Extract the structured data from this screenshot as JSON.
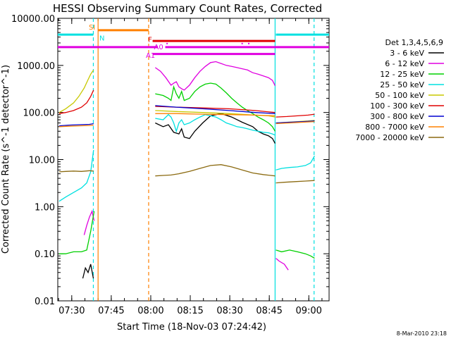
{
  "chart_data": {
    "type": "line",
    "title": "HESSI Observing Summary Count Rates, Corrected",
    "xlabel": "Start Time (18-Nov-03 07:24:42)",
    "ylabel": "Corrected Count Rate (s^-1 detector^-1)",
    "x_unit": "minutes since 07:24:42",
    "xlim": [
      0,
      103
    ],
    "ylim": [
      0.01,
      10000
    ],
    "y_scale": "log",
    "x_ticks": [
      {
        "label": "07:30",
        "x": 5.3
      },
      {
        "label": "07:45",
        "x": 20.3
      },
      {
        "label": "08:00",
        "x": 35.3
      },
      {
        "label": "08:15",
        "x": 50.3
      },
      {
        "label": "08:30",
        "x": 65.3
      },
      {
        "label": "08:45",
        "x": 80.3
      },
      {
        "label": "09:00",
        "x": 95.3
      }
    ],
    "y_ticks": [
      {
        "label": "10000.00",
        "v": 10000
      },
      {
        "label": "1000.00",
        "v": 1000
      },
      {
        "label": "100.00",
        "v": 100
      },
      {
        "label": "10.00",
        "v": 10
      },
      {
        "label": "1.00",
        "v": 1
      },
      {
        "label": "0.10",
        "v": 0.1
      },
      {
        "label": "0.01",
        "v": 0.01
      }
    ],
    "legend_title": "Det 1,3,4,5,6,9",
    "legend_position": "right",
    "date_stamp": "8-Mar-2010 23:18",
    "series": [
      {
        "name": "3 - 6 keV",
        "color": "#000000",
        "segments": [
          {
            "x": [
              9.5,
              10.5,
              11.5,
              12.5,
              13.5
            ],
            "y": [
              0.03,
              0.05,
              0.04,
              0.06,
              0.03
            ]
          },
          {
            "x": [
              37,
              40,
              42,
              44,
              46,
              47,
              48,
              50,
              52,
              55,
              58,
              62,
              66,
              70,
              74,
              76,
              78,
              80,
              81.5,
              82.5
            ],
            "y": [
              60,
              50,
              55,
              38,
              35,
              45,
              30,
              28,
              40,
              60,
              85,
              95,
              80,
              62,
              50,
              40,
              35,
              32,
              28,
              22
            ]
          }
        ]
      },
      {
        "name": "6 - 12 keV",
        "color": "#e000e0",
        "segments": [
          {
            "x": [
              10,
              11,
              12,
              13,
              13.8
            ],
            "y": [
              0.25,
              0.4,
              0.6,
              0.8,
              0.5
            ]
          },
          {
            "x": [
              37,
              39,
              41,
              43,
              44,
              45,
              46,
              47,
              48,
              50,
              52,
              54,
              56,
              58,
              60,
              62,
              64,
              66,
              68,
              70,
              72,
              74,
              76,
              78,
              80,
              81.5,
              82.5
            ],
            "y": [
              900,
              750,
              550,
              380,
              420,
              450,
              350,
              320,
              300,
              380,
              550,
              750,
              950,
              1150,
              1200,
              1100,
              1000,
              950,
              900,
              850,
              800,
              700,
              650,
              600,
              550,
              480,
              370
            ]
          },
          {
            "x": [
              82.8,
              84,
              86,
              87.5
            ],
            "y": [
              0.08,
              0.07,
              0.06,
              0.045
            ]
          }
        ]
      },
      {
        "name": "12 - 25 keV",
        "color": "#00d000",
        "segments": [
          {
            "x": [
              0.5,
              3,
              6,
              9,
              11,
              12.5,
              13.8
            ],
            "y": [
              0.1,
              0.1,
              0.11,
              0.11,
              0.12,
              0.3,
              0.8
            ]
          },
          {
            "x": [
              37,
              40,
              42,
              43,
              44,
              45,
              46,
              47,
              48,
              50,
              52,
              54,
              56,
              58,
              60,
              62,
              64,
              66,
              68,
              70,
              72,
              74,
              76,
              78,
              80,
              81.5,
              82.5
            ],
            "y": [
              250,
              230,
              200,
              180,
              350,
              250,
              200,
              280,
              180,
              200,
              280,
              350,
              400,
              420,
              400,
              330,
              260,
              200,
              160,
              130,
              110,
              95,
              80,
              70,
              60,
              50,
              40
            ]
          },
          {
            "x": [
              82.8,
              85,
              88,
              91,
              94,
              96,
              97.5
            ],
            "y": [
              0.12,
              0.11,
              0.12,
              0.11,
              0.1,
              0.09,
              0.08
            ]
          }
        ]
      },
      {
        "name": "25 - 50 keV",
        "color": "#00e0e0",
        "segments": [
          {
            "x": [
              0.5,
              3,
              6,
              9,
              11,
              12.5,
              13.6
            ],
            "y": [
              1.3,
              1.6,
              2.0,
              2.5,
              3.2,
              5.5,
              16
            ]
          },
          {
            "x": [
              37,
              40,
              42,
              43,
              44,
              45,
              46,
              47,
              48,
              50,
              52,
              54,
              56,
              58,
              60,
              62,
              64,
              66,
              68,
              70,
              72,
              74,
              76,
              78,
              80,
              81.5,
              82.5
            ],
            "y": [
              75,
              70,
              90,
              80,
              60,
              40,
              60,
              70,
              55,
              60,
              70,
              80,
              90,
              85,
              80,
              70,
              60,
              55,
              50,
              48,
              45,
              42,
              40,
              38,
              37,
              35,
              33
            ]
          },
          {
            "x": [
              82.8,
              85,
              88,
              91,
              94,
              96,
              97.5
            ],
            "y": [
              6.0,
              6.5,
              6.8,
              7.0,
              7.5,
              8.5,
              12
            ]
          }
        ]
      },
      {
        "name": "50 - 100 keV",
        "color": "#c8c800",
        "segments": [
          {
            "x": [
              0.5,
              3,
              6,
              8,
              10,
              11.5,
              12.5,
              13.6
            ],
            "y": [
              100,
              120,
              160,
              220,
              330,
              500,
              650,
              800
            ]
          },
          {
            "x": [
              37,
              45,
              55,
              65,
              75,
              80,
              82.5
            ],
            "y": [
              110,
              105,
              100,
              95,
              88,
              85,
              80
            ]
          },
          {
            "x": [
              82.8,
              87,
              91,
              95,
              97.5
            ],
            "y": [
              60,
              62,
              64,
              66,
              68
            ]
          }
        ]
      },
      {
        "name": "100 - 300 keV",
        "color": "#e00000",
        "segments": [
          {
            "x": [
              0.5,
              3,
              6,
              9,
              11,
              12.5,
              13.6
            ],
            "y": [
              95,
              100,
              110,
              130,
              160,
              220,
              300
            ]
          },
          {
            "x": [
              37,
              45,
              55,
              65,
              75,
              82.5
            ],
            "y": [
              135,
              130,
              125,
              120,
              110,
              100
            ]
          },
          {
            "x": [
              82.8,
              87,
              91,
              95,
              97.5
            ],
            "y": [
              80,
              82,
              85,
              88,
              92
            ]
          }
        ]
      },
      {
        "name": "300 - 800 keV",
        "color": "#0000d0",
        "segments": [
          {
            "x": [
              0.5,
              4,
              8,
              12,
              13.6
            ],
            "y": [
              52,
              54,
              55,
              56,
              58
            ]
          },
          {
            "x": [
              37,
              45,
              55,
              65,
              75,
              82.5
            ],
            "y": [
              140,
              130,
              120,
              110,
              100,
              95
            ]
          },
          {
            "x": [
              82.8,
              88,
              93,
              97.5
            ],
            "y": [
              60,
              62,
              64,
              66
            ]
          }
        ]
      },
      {
        "name": "800 - 7000 keV",
        "color": "#ff8000",
        "segments": [
          {
            "x": [
              0.5,
              4,
              8,
              12,
              13.6
            ],
            "y": [
              50,
              51,
              52,
              53,
              54
            ]
          },
          {
            "x": [
              37,
              45,
              55,
              65,
              75,
              82.5
            ],
            "y": [
              95,
              95,
              92,
              90,
              88,
              85
            ]
          },
          {
            "x": [
              82.8,
              88,
              93,
              97.5
            ],
            "y": [
              58,
              60,
              62,
              64
            ]
          }
        ]
      },
      {
        "name": "7000 - 20000 keV",
        "color": "#8b6a10",
        "segments": [
          {
            "x": [
              0.5,
              3,
              6,
              9,
              12,
              13.6
            ],
            "y": [
              5.5,
              5.6,
              5.7,
              5.6,
              5.8,
              5.7
            ]
          },
          {
            "x": [
              37,
              40,
              43,
              46,
              50,
              54,
              58,
              62,
              66,
              70,
              74,
              78,
              82.5
            ],
            "y": [
              4.5,
              4.6,
              4.7,
              5.0,
              5.6,
              6.5,
              7.5,
              7.8,
              7.0,
              6.0,
              5.2,
              4.8,
              4.5
            ]
          },
          {
            "x": [
              82.8,
              86,
              90,
              94,
              97.5
            ],
            "y": [
              3.2,
              3.3,
              3.4,
              3.5,
              3.6
            ]
          }
        ]
      }
    ],
    "vertical_lines": [
      {
        "x": 13.5,
        "color": "#00e0e0",
        "style": "dashed"
      },
      {
        "x": 15.3,
        "color": "#ff8000",
        "style": "solid"
      },
      {
        "x": 34.5,
        "color": "#ff8000",
        "style": "dashed"
      },
      {
        "x": 82.5,
        "color": "#00e0e0",
        "style": "solid"
      },
      {
        "x": 97.3,
        "color": "#00e0e0",
        "style": "dashed"
      }
    ],
    "flag_bars": [
      {
        "label": "",
        "color": "#00e0e0",
        "y": 4500,
        "segments": [
          [
            0,
            13.5
          ],
          [
            82.8,
            103
          ]
        ]
      },
      {
        "label": "SI",
        "color": "#ff8000",
        "y": 5600,
        "label_x": 13.0,
        "label_y": 6400,
        "segments": [
          [
            15.3,
            34.5
          ]
        ]
      },
      {
        "label": "F",
        "color": "#e00000",
        "y": 3300,
        "label_x": 35.0,
        "label_y": 3500,
        "segments": [
          [
            36.0,
            82.5
          ]
        ]
      },
      {
        "label": "A0",
        "color": "#e000e0",
        "y": 2450,
        "label_x": 38.3,
        "label_y": 2450,
        "segments": [
          [
            0,
            38.0
          ],
          [
            40.8,
            103
          ]
        ]
      },
      {
        "label": "A1",
        "color": "#e000e0",
        "y": 1750,
        "label_x": 35.2,
        "label_y": 1600,
        "segments": [
          [
            36.0,
            82.5
          ]
        ]
      }
    ],
    "flag_marks": [
      {
        "label": "N",
        "color": "#00e0e0",
        "x": 15.8,
        "y": 3900
      }
    ]
  }
}
